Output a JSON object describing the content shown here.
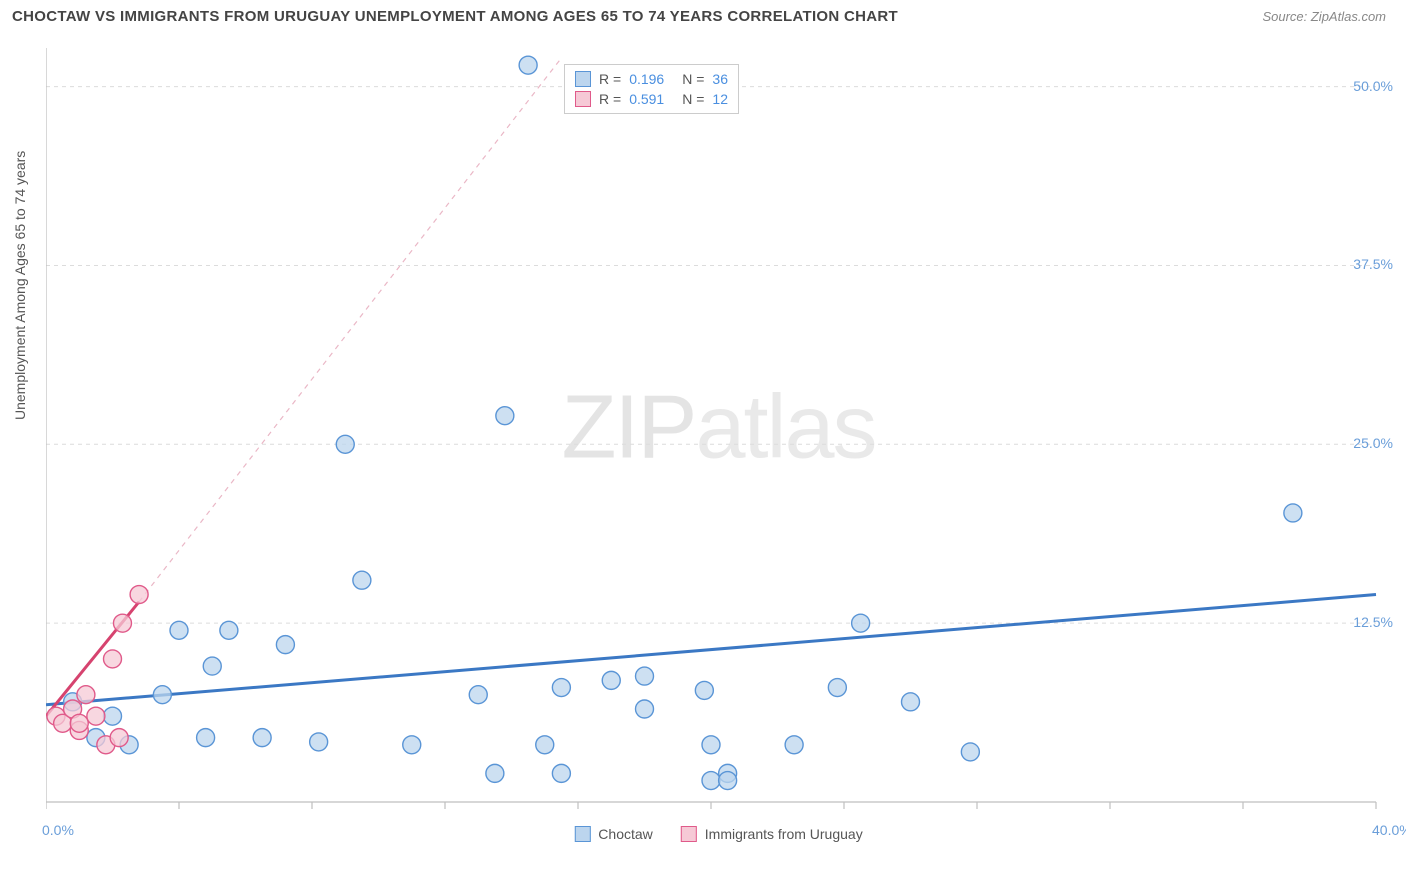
{
  "title": "CHOCTAW VS IMMIGRANTS FROM URUGUAY UNEMPLOYMENT AMONG AGES 65 TO 74 YEARS CORRELATION CHART",
  "source": "Source: ZipAtlas.com",
  "ylabel": "Unemployment Among Ages 65 to 74 years",
  "watermark_a": "ZIP",
  "watermark_b": "atlas",
  "chart": {
    "type": "scatter",
    "background_color": "#ffffff",
    "grid_color": "#dcdcdc",
    "axis_color": "#bfbfbf",
    "axis_label_color": "#6a9ed9",
    "xlim": [
      0,
      40
    ],
    "ylim": [
      0,
      52
    ],
    "xticks": [
      0,
      4,
      8,
      12,
      16,
      20,
      24,
      28,
      32,
      36,
      40
    ],
    "xtick_labels": {
      "0": "0.0%",
      "40": "40.0%"
    },
    "yticks": [
      12.5,
      25.0,
      37.5,
      50.0
    ],
    "ytick_labels": {
      "12.5": "12.5%",
      "25.0": "25.0%",
      "37.5": "37.5%",
      "50.0": "50.0%"
    },
    "marker_radius": 9,
    "marker_stroke_width": 1.4,
    "trend_line_width": 3,
    "trend_dash_width": 1.2,
    "series": [
      {
        "name": "Choctaw",
        "fill": "#bcd5ee",
        "stroke": "#5a95d6",
        "swatch_fill": "#bcd5ee",
        "swatch_stroke": "#5a95d6",
        "points": [
          [
            14.5,
            51.5
          ],
          [
            37.5,
            20.2
          ],
          [
            13.8,
            27.0
          ],
          [
            9.0,
            25.0
          ],
          [
            24.5,
            12.5
          ],
          [
            9.5,
            15.5
          ],
          [
            0.8,
            7.0
          ],
          [
            2.0,
            6.0
          ],
          [
            4.0,
            12.0
          ],
          [
            5.0,
            9.5
          ],
          [
            5.5,
            12.0
          ],
          [
            7.2,
            11.0
          ],
          [
            4.8,
            4.5
          ],
          [
            6.5,
            4.5
          ],
          [
            8.2,
            4.2
          ],
          [
            11.0,
            4.0
          ],
          [
            13.0,
            7.5
          ],
          [
            13.5,
            2.0
          ],
          [
            15.0,
            4.0
          ],
          [
            15.5,
            8.0
          ],
          [
            15.5,
            2.0
          ],
          [
            17.0,
            8.5
          ],
          [
            18.0,
            8.8
          ],
          [
            18.0,
            6.5
          ],
          [
            19.8,
            7.8
          ],
          [
            20.0,
            4.0
          ],
          [
            20.5,
            2.0
          ],
          [
            20.0,
            1.5
          ],
          [
            23.8,
            8.0
          ],
          [
            22.5,
            4.0
          ],
          [
            26.0,
            7.0
          ],
          [
            27.8,
            3.5
          ],
          [
            20.5,
            1.5
          ],
          [
            1.5,
            4.5
          ],
          [
            2.5,
            4.0
          ],
          [
            3.5,
            7.5
          ]
        ],
        "trend": {
          "x1": 0,
          "y1": 6.8,
          "x2": 40,
          "y2": 14.5,
          "dash": false,
          "color": "#3b78c4"
        }
      },
      {
        "name": "Immigrants from Uruguay",
        "fill": "#f6c9d6",
        "stroke": "#e05a8a",
        "swatch_fill": "#f6c9d6",
        "swatch_stroke": "#e05a8a",
        "points": [
          [
            0.3,
            6.0
          ],
          [
            0.5,
            5.5
          ],
          [
            0.8,
            6.5
          ],
          [
            1.0,
            5.0
          ],
          [
            1.2,
            7.5
          ],
          [
            1.5,
            6.0
          ],
          [
            1.8,
            4.0
          ],
          [
            2.0,
            10.0
          ],
          [
            2.2,
            4.5
          ],
          [
            2.3,
            12.5
          ],
          [
            2.8,
            14.5
          ],
          [
            1.0,
            5.5
          ]
        ],
        "trend_solid": {
          "x1": 0,
          "y1": 6.0,
          "x2": 2.8,
          "y2": 14.0,
          "color": "#d6436f"
        },
        "trend_dash": {
          "x1": 2.8,
          "y1": 14.0,
          "x2": 15.5,
          "y2": 52.0,
          "color": "#eab7c6"
        }
      }
    ],
    "legend_top": [
      {
        "swatch_fill": "#bcd5ee",
        "swatch_stroke": "#5a95d6",
        "r_label": "R =",
        "r_value": "0.196",
        "n_label": "N =",
        "n_value": "36"
      },
      {
        "swatch_fill": "#f6c9d6",
        "swatch_stroke": "#e05a8a",
        "r_label": "R =",
        "r_value": "0.591",
        "n_label": "N =",
        "n_value": "12"
      }
    ],
    "legend_bottom": [
      {
        "swatch_fill": "#bcd5ee",
        "swatch_stroke": "#5a95d6",
        "label": "Choctaw"
      },
      {
        "swatch_fill": "#f6c9d6",
        "swatch_stroke": "#e05a8a",
        "label": "Immigrants from Uruguay"
      }
    ]
  }
}
